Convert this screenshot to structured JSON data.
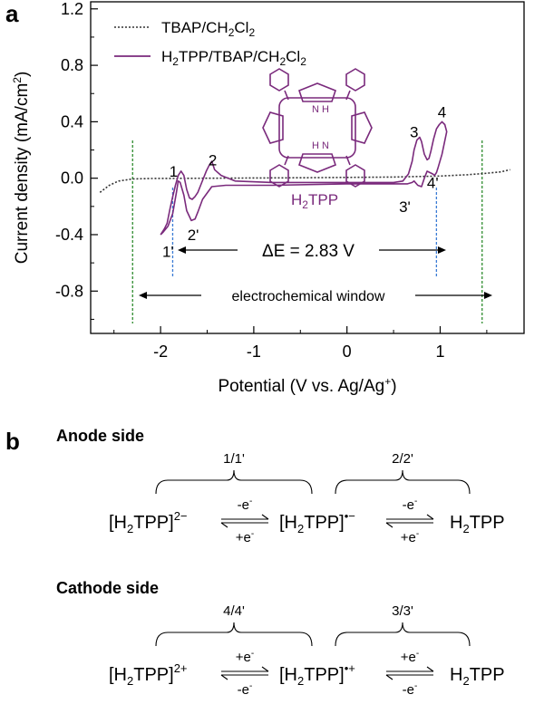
{
  "panel_a": {
    "label": "a",
    "legend": [
      "TBAP/CH2Cl2",
      "H2TPP/TBAP/CH2Cl2"
    ],
    "molecule_label": "H2TPP",
    "delta_e": "ΔE = 2.83 V",
    "window_label": "electrochemical window",
    "peak_labels": [
      "1",
      "2",
      "1'",
      "2'",
      "3",
      "4",
      "3'",
      "4'"
    ]
  },
  "panel_b": {
    "label": "b",
    "anode": {
      "title": "Anode side",
      "brace_labels": [
        "1/1'",
        "2/2'"
      ],
      "species": [
        "[H2TPP]2−",
        "[H2TPP]•−",
        "H2TPP"
      ],
      "arrows": [
        {
          "top": "-e-",
          "bottom": "+e-"
        },
        {
          "top": "-e-",
          "bottom": "+e-"
        }
      ]
    },
    "cathode": {
      "title": "Cathode side",
      "brace_labels": [
        "4/4'",
        "3/3'"
      ],
      "species": [
        "[H2TPP]2+",
        "[H2TPP]•+",
        "H2TPP"
      ],
      "arrows": [
        {
          "top": "+e-",
          "bottom": "-e-"
        },
        {
          "top": "+e-",
          "bottom": "-e-"
        }
      ]
    }
  },
  "chart_data": {
    "type": "line",
    "xlabel": "Potential (V vs. Ag/Ag+)",
    "ylabel": "Current density (mA/cm2)",
    "xlim": [
      -2.75,
      1.9
    ],
    "ylim": [
      -1.1,
      1.25
    ],
    "xticks": [
      -2,
      -1,
      0,
      1
    ],
    "xtick_labels": [
      "-2",
      "-1",
      "0",
      "1"
    ],
    "yticks": [
      -0.8,
      -0.4,
      0.0,
      0.4,
      0.8,
      1.2
    ],
    "ytick_labels": [
      "-0.8",
      "-0.4",
      "0.0",
      "0.4",
      "0.8",
      "1.2"
    ],
    "legend_position": "top-left",
    "series": [
      {
        "name": "TBAP/CH2Cl2",
        "color": "#333333",
        "style": "dotted",
        "x": [
          -2.65,
          -2.55,
          -2.45,
          -2.3,
          -2.1,
          -1.5,
          -0.5,
          0.5,
          1.0,
          1.3,
          1.5,
          1.65,
          1.75
        ],
        "y": [
          -0.1,
          -0.05,
          -0.02,
          -0.005,
          -0.002,
          0.0,
          0.003,
          0.008,
          0.015,
          0.025,
          0.035,
          0.045,
          0.06
        ]
      },
      {
        "name": "H2TPP/TBAP/CH2Cl2",
        "color": "#7a2a7c",
        "style": "solid",
        "x": [
          -2.0,
          -1.96,
          -1.93,
          -1.9,
          -1.87,
          -1.84,
          -1.81,
          -1.78,
          -1.75,
          -1.72,
          -1.69,
          -1.66,
          -1.63,
          -1.6,
          -1.57,
          -1.54,
          -1.51,
          -1.48,
          -1.45,
          -1.42,
          -1.35,
          -1.2,
          -0.8,
          0.0,
          0.5,
          0.6,
          0.66,
          0.7,
          0.72,
          0.75,
          0.78,
          0.8,
          0.83,
          0.86,
          0.88,
          0.9,
          0.93,
          0.96,
          0.99,
          1.02,
          1.05,
          1.07,
          1.02,
          0.98,
          0.96,
          0.94,
          0.92,
          0.89,
          0.86,
          0.83,
          0.8,
          0.76,
          0.72,
          0.7,
          0.65,
          0.5,
          0.0,
          -0.8,
          -1.3,
          -1.45,
          -1.55,
          -1.6,
          -1.63,
          -1.67,
          -1.72,
          -1.75,
          -1.79,
          -1.81,
          -1.83,
          -1.87,
          -1.92,
          -1.97,
          -2.0
        ],
        "y": [
          -0.4,
          -0.36,
          -0.32,
          -0.22,
          -0.13,
          -0.05,
          0.02,
          0.05,
          0.02,
          -0.08,
          -0.14,
          -0.15,
          -0.13,
          -0.1,
          -0.05,
          0.0,
          0.05,
          0.09,
          0.12,
          0.06,
          0.02,
          -0.02,
          -0.03,
          -0.03,
          -0.03,
          -0.02,
          0.03,
          0.12,
          0.2,
          0.27,
          0.29,
          0.26,
          0.17,
          0.13,
          0.14,
          0.19,
          0.28,
          0.35,
          0.38,
          0.4,
          0.38,
          0.33,
          0.17,
          0.08,
          0.04,
          0.02,
          0.03,
          0.04,
          0.05,
          0.0,
          -0.06,
          -0.05,
          -0.02,
          -0.03,
          -0.04,
          -0.04,
          -0.04,
          -0.05,
          -0.05,
          -0.06,
          -0.15,
          -0.24,
          -0.29,
          -0.3,
          -0.23,
          -0.12,
          -0.03,
          -0.02,
          -0.1,
          -0.25,
          -0.34,
          -0.38,
          -0.4
        ]
      }
    ],
    "annotations": [
      {
        "text": "1",
        "x": -1.86,
        "y": 0.05
      },
      {
        "text": "2",
        "x": -1.44,
        "y": 0.13
      },
      {
        "text": "1'",
        "x": -1.92,
        "y": -0.52
      },
      {
        "text": "2'",
        "x": -1.65,
        "y": -0.4
      },
      {
        "text": "3",
        "x": 0.72,
        "y": 0.33
      },
      {
        "text": "4",
        "x": 1.02,
        "y": 0.47
      },
      {
        "text": "3'",
        "x": 0.62,
        "y": -0.2
      },
      {
        "text": "4'",
        "x": 0.92,
        "y": -0.03
      }
    ],
    "reference_lines": [
      {
        "x": -2.3,
        "color": "#2e8b2e",
        "style": "dashed"
      },
      {
        "x": 1.45,
        "color": "#2e8b2e",
        "style": "dashed"
      },
      {
        "x": -1.87,
        "color": "#3a7bd5",
        "style": "dashed"
      },
      {
        "x": 0.96,
        "color": "#3a7bd5",
        "style": "dashed"
      }
    ]
  }
}
